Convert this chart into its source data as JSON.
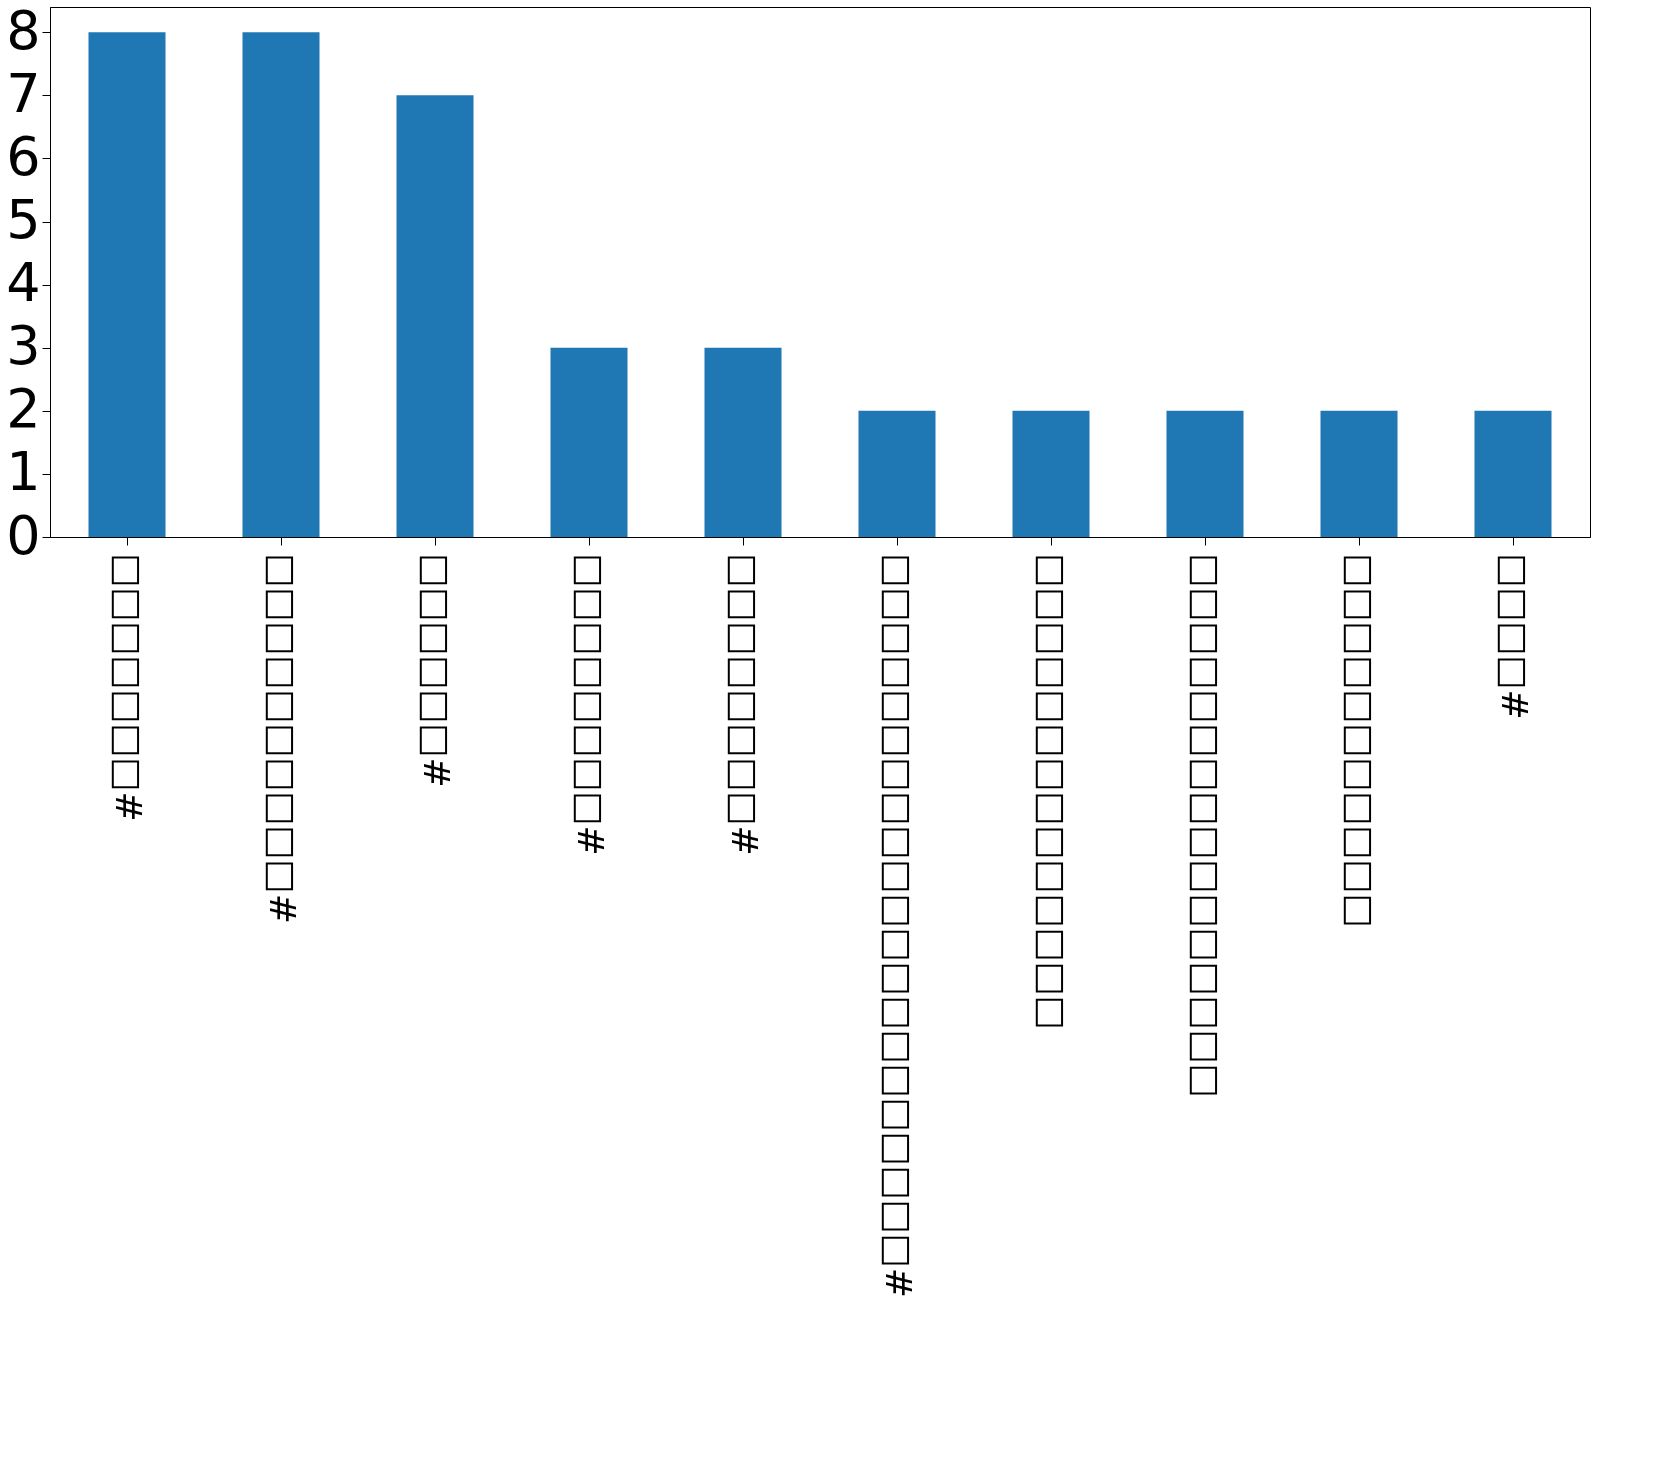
{
  "chart_data": {
    "type": "bar",
    "categories": [
      "□□□□□□□#",
      "□□□□□□□□□□#",
      "□□□□□□#",
      "□□□□□□□□#",
      "□□□□□□□□#",
      "□□□□□□□□□□□□□□□□□□□□□#",
      "□□□□□□□□□□□□□□",
      "□□□□□□□□□□□□□□□□",
      "□□□□□□□□□□□",
      "□□□□#"
    ],
    "values": [
      8,
      8,
      7,
      3,
      3,
      2,
      2,
      2,
      2,
      2
    ],
    "color": "#1f77b4",
    "ylim": [
      0,
      8.4
    ],
    "yticks": [
      0,
      1,
      2,
      3,
      4,
      5,
      6,
      7,
      8
    ],
    "grid": false
  }
}
